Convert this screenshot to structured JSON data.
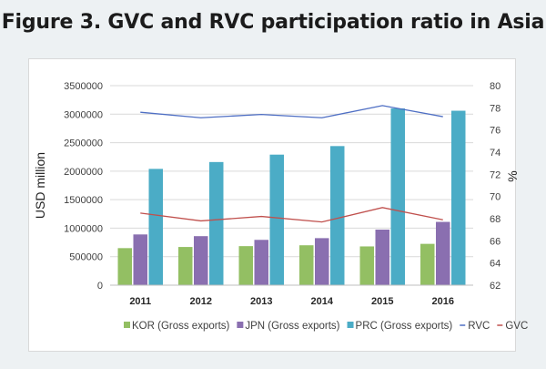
{
  "figure": {
    "title": "Figure 3. GVC and RVC participation ratio in Asia"
  },
  "chart_data": {
    "type": "bar",
    "categories": [
      "2011",
      "2012",
      "2013",
      "2014",
      "2015",
      "2016"
    ],
    "series": [
      {
        "name": "KOR (Gross exports)",
        "kind": "bar",
        "axis": "left",
        "color": "#93bf63",
        "values": [
          650000,
          670000,
          685000,
          700000,
          680000,
          725000
        ]
      },
      {
        "name": "JPN (Gross exports)",
        "kind": "bar",
        "axis": "left",
        "color": "#8a6fb0",
        "values": [
          890000,
          860000,
          795000,
          825000,
          975000,
          1110000
        ]
      },
      {
        "name": "PRC (Gross exports)",
        "kind": "bar",
        "axis": "left",
        "color": "#4bacc6",
        "values": [
          2040000,
          2160000,
          2290000,
          2440000,
          3100000,
          3060000
        ]
      },
      {
        "name": "RVC",
        "kind": "line",
        "axis": "right",
        "color": "#4f6fc4",
        "values": [
          77.6,
          77.1,
          77.4,
          77.1,
          78.2,
          77.2
        ]
      },
      {
        "name": "GVC",
        "kind": "line",
        "axis": "right",
        "color": "#c0504d",
        "values": [
          68.5,
          67.8,
          68.2,
          67.7,
          69.0,
          67.9
        ]
      }
    ],
    "ylabel": "USD million",
    "y2label": "%",
    "ylim": [
      0,
      3500000
    ],
    "y2lim": [
      62,
      80
    ],
    "yticks": [
      "0",
      "500000",
      "1000000",
      "1500000",
      "2000000",
      "2500000",
      "3000000",
      "3500000"
    ],
    "y2ticks": [
      "62",
      "64",
      "66",
      "68",
      "70",
      "72",
      "74",
      "76",
      "78",
      "80"
    ],
    "grid": true,
    "legend_position": "bottom"
  }
}
